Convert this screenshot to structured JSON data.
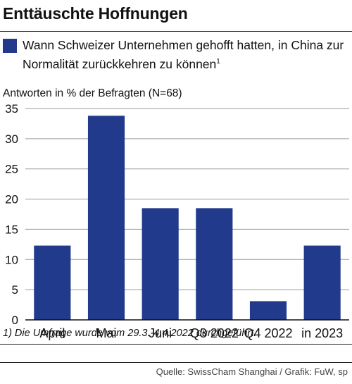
{
  "title": "Enttäuschte Hoffnungen",
  "legend": {
    "label": "Wann Schweizer Unternehmen gehofft hatten, in China zur Normalität zurückkehren zu können",
    "footnote_marker": "1",
    "color": "#213a8c"
  },
  "unit_label": "Antworten in % der Befragten (N=68)",
  "footnote": "1) Die Umfrage wurde vom 29.3.-4.4.2022 durchgeführt.",
  "source": "Quelle: SwissCham Shanghai / Grafik: FuW, sp",
  "chart_data": {
    "type": "bar",
    "title": "Enttäuschte Hoffnungen",
    "ylabel": "Antworten in % der Befragten (N=68)",
    "categories": [
      "April",
      "Mai",
      "Juni",
      "Q3 2022",
      "Q4 2022",
      "in 2023"
    ],
    "series": [
      {
        "name": "Wann Schweizer Unternehmen gehofft hatten, in China zur Normalität zurückkehren zu können",
        "values": [
          12.3,
          33.8,
          18.5,
          18.5,
          3.1,
          12.3
        ],
        "color": "#213a8c"
      }
    ],
    "ylim": [
      0,
      35
    ],
    "yticks": [
      0,
      5,
      10,
      15,
      20,
      25,
      30,
      35
    ],
    "grid": true
  }
}
